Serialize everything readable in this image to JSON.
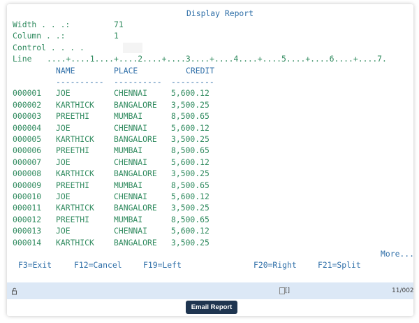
{
  "title": "Display Report",
  "fields": [
    {
      "label": "Width . . .:",
      "value": "71"
    },
    {
      "label": "Column . .:",
      "value": "1"
    },
    {
      "label": "Control . . . ."
    }
  ],
  "ruler": {
    "label": "Line",
    "scale": "....+....1....+....2....+....3....+....4....+....5....+....6....+....7."
  },
  "table": {
    "headers": [
      "NAME",
      "PLACE",
      "CREDIT"
    ],
    "separators": [
      "----------",
      "----------",
      "---------"
    ],
    "rows": [
      [
        "000001",
        "JOE",
        "CHENNAI",
        "5,600.12"
      ],
      [
        "000002",
        "KARTHICK",
        "BANGALORE",
        "3,500.25"
      ],
      [
        "000003",
        "PREETHI",
        "MUMBAI",
        "8,500.65"
      ],
      [
        "000004",
        "JOE",
        "CHENNAI",
        "5,600.12"
      ],
      [
        "000005",
        "KARTHICK",
        "BANGALORE",
        "3,500.25"
      ],
      [
        "000006",
        "PREETHI",
        "MUMBAI",
        "8,500.65"
      ],
      [
        "000007",
        "JOE",
        "CHENNAI",
        "5,600.12"
      ],
      [
        "000008",
        "KARTHICK",
        "BANGALORE",
        "3,500.25"
      ],
      [
        "000009",
        "PREETHI",
        "MUMBAI",
        "8,500.65"
      ],
      [
        "000010",
        "JOE",
        "CHENNAI",
        "5,600.12"
      ],
      [
        "000011",
        "KARTHICK",
        "BANGALORE",
        "3,500.25"
      ],
      [
        "000012",
        "PREETHI",
        "MUMBAI",
        "8,500.65"
      ],
      [
        "000013",
        "JOE",
        "CHENNAI",
        "5,600.12"
      ],
      [
        "000014",
        "KARTHICK",
        "BANGALORE",
        "3,500.25"
      ]
    ]
  },
  "more": "More...",
  "function_keys": [
    "F3=Exit",
    "F12=Cancel",
    "F19=Left",
    "F20=Right",
    "F21=Split"
  ],
  "status": {
    "indicator": "[]",
    "cursor": "11/002"
  },
  "button": "Email Report"
}
